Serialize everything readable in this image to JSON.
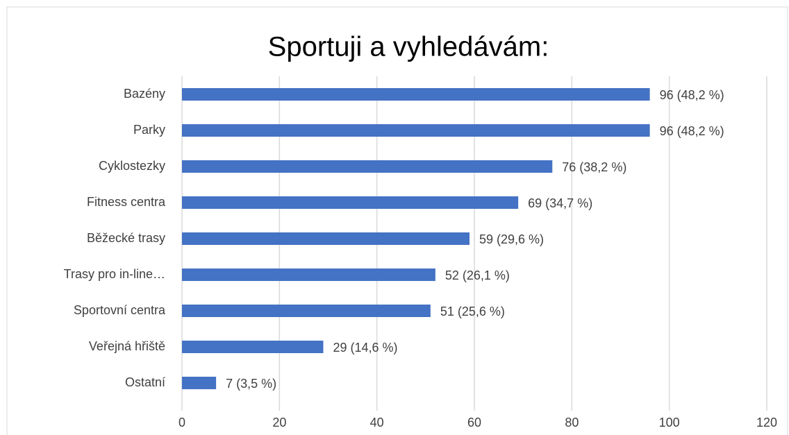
{
  "chart_data": {
    "type": "bar",
    "orientation": "horizontal",
    "title": "Sportuji a vyhledávám:",
    "categories": [
      "Bazény",
      "Parky",
      "Cyklostezky",
      "Fitness centra",
      "Běžecké trasy",
      "Trasy pro in-line…",
      "Sportovní centra",
      "Veřejná hřiště",
      "Ostatní"
    ],
    "values": [
      96,
      96,
      76,
      69,
      59,
      52,
      51,
      29,
      7
    ],
    "value_labels": [
      "96 (48,2 %)",
      "96 (48,2 %)",
      "76 (38,2 %)",
      "69 (34,7 %)",
      "59 (29,6 %)",
      "52 (26,1 %)",
      "51 (25,6 %)",
      "29 (14,6 %)",
      "7 (3,5 %)"
    ],
    "color": "#4472c4",
    "xlim": [
      0,
      120
    ],
    "xticks": [
      0,
      20,
      40,
      60,
      80,
      100,
      120
    ],
    "grid": true
  }
}
